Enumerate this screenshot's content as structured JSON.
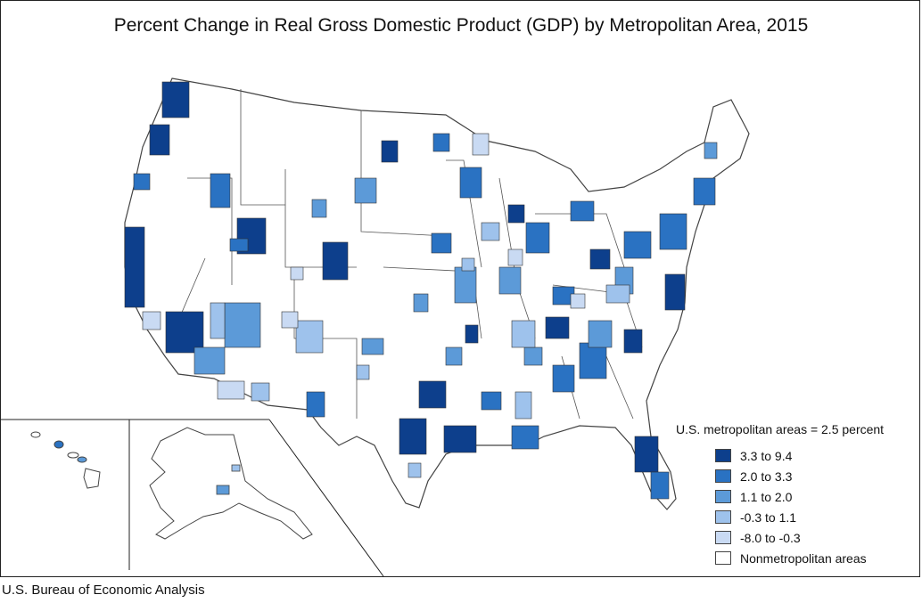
{
  "title": "Percent Change in Real Gross Domestic Product (GDP) by Metropolitan Area, 2015",
  "source": "U.S. Bureau of Economic Analysis",
  "legend": {
    "title": "U.S. metropolitan areas = 2.5 percent",
    "items": [
      {
        "label": "3.3 to 9.4",
        "color": "#0d3f8c"
      },
      {
        "label": "2.0 to 3.3",
        "color": "#2a72c2"
      },
      {
        "label": "1.1 to 2.0",
        "color": "#5c9ad8"
      },
      {
        "label": "-0.3 to 1.1",
        "color": "#9ec2ec"
      },
      {
        "label": "-8.0 to -0.3",
        "color": "#c9daf3"
      },
      {
        "label": "Nonmetropolitan areas",
        "color": "#ffffff"
      }
    ]
  },
  "colors": {
    "border": "#444444",
    "land": "#ffffff"
  }
}
